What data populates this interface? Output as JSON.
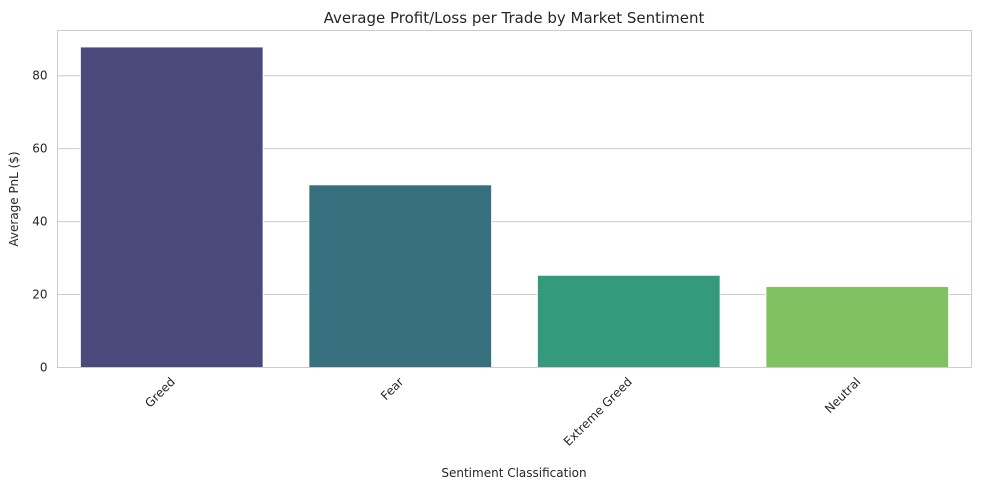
{
  "chart_data": {
    "type": "bar",
    "title": "Average Profit/Loss per Trade by Market Sentiment",
    "xlabel": "Sentiment Classification",
    "ylabel": "Average PnL ($)",
    "categories": [
      "Greed",
      "Fear",
      "Extreme Greed",
      "Neutral"
    ],
    "values": [
      87.9,
      50.1,
      25.3,
      22.2
    ],
    "colors": [
      "#4a4a7c",
      "#36707e",
      "#35997b",
      "#80c262"
    ],
    "ylim": [
      0,
      92.4
    ],
    "yticks": [
      0,
      20,
      40,
      60,
      80
    ],
    "grid": "horizontal",
    "legend": "none"
  }
}
